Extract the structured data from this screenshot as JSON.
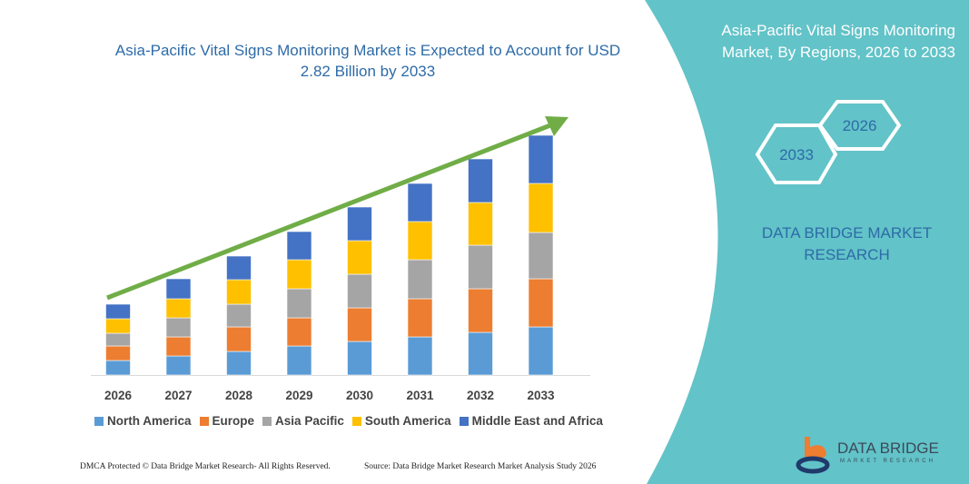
{
  "header": {
    "title": "Asia-Pacific Vital Signs Monitoring Market is Expected to Account for USD 2.82 Billion by 2033"
  },
  "side_panel": {
    "title": "Asia-Pacific Vital Signs Monitoring Market, By Regions, 2026 to 2033",
    "hex_start": "2026",
    "hex_end": "2033",
    "brand": "DATA BRIDGE MARKET RESEARCH",
    "color": "#62c3c8"
  },
  "logo": {
    "name": "DATA BRIDGE",
    "sub": "MARKET RESEARCH"
  },
  "footer": {
    "left": "DMCA Protected © Data Bridge Market Research- All Rights Reserved.",
    "right": "Source: Data Bridge Market Research Market Analysis Study 2026"
  },
  "chart_data": {
    "type": "bar",
    "stacked": true,
    "title": "Asia-Pacific Vital Signs Monitoring Market is Expected to Account for USD 2.82 Billion by 2033",
    "xlabel": "",
    "ylabel": "",
    "grid": false,
    "y_axis_shown": false,
    "legend_position": "bottom",
    "trend_arrow": true,
    "categories": [
      "2026",
      "2027",
      "2028",
      "2029",
      "2030",
      "2031",
      "2032",
      "2033"
    ],
    "ylim": [
      0,
      270
    ],
    "series": [
      {
        "name": "North America",
        "color": "#5b9bd5",
        "values": [
          16,
          21,
          26,
          32,
          37,
          42,
          47,
          53
        ]
      },
      {
        "name": "Europe",
        "color": "#ed7d31",
        "values": [
          16,
          21,
          27,
          31,
          37,
          42,
          48,
          53
        ]
      },
      {
        "name": "Asia Pacific",
        "color": "#a5a5a5",
        "values": [
          14,
          21,
          25,
          32,
          37,
          43,
          48,
          51
        ]
      },
      {
        "name": "South America",
        "color": "#ffc000",
        "values": [
          16,
          21,
          27,
          32,
          37,
          42,
          47,
          54
        ]
      },
      {
        "name": "Middle East and Africa",
        "color": "#4472c4",
        "values": [
          16,
          22,
          26,
          31,
          37,
          42,
          48,
          53
        ]
      }
    ],
    "arrow_color": "#70ad47"
  }
}
